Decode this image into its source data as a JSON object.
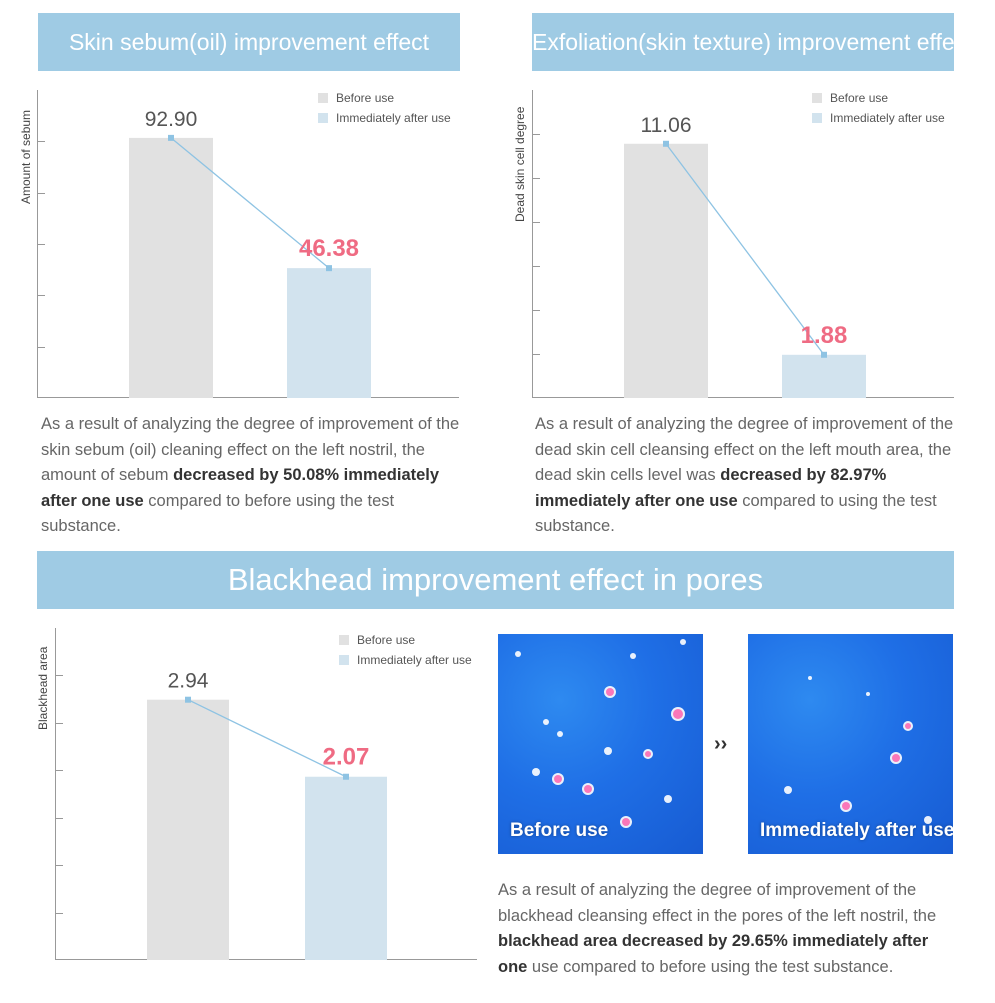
{
  "colors": {
    "banner": "#9fcbe4",
    "before_bar": "#e1e1e1",
    "after_bar": "#d2e3ee",
    "trend_line": "#8ec3e3",
    "after_value": "#ef6b83",
    "before_value": "#555555"
  },
  "legend": {
    "before": "Before use",
    "after": "Immediately after use"
  },
  "sebum": {
    "title": "Skin sebum(oil) improvement effect",
    "ylabel": "Amount of sebum",
    "description": [
      {
        "text": "As a result of analyzing the degree of improvement of the skin sebum (oil) cleaning effect on the left nostril, the amount of sebum ",
        "bold": false
      },
      {
        "text": "decreased by 50.08% immediately after one use",
        "bold": true
      },
      {
        "text": " compared to before using the test substance.",
        "bold": false
      }
    ]
  },
  "exfoliation": {
    "title": "Exfoliation(skin texture) improvement effect",
    "ylabel": "Dead skin cell degree",
    "description": [
      {
        "text": "As a result of analyzing the degree of improvement of the dead skin cell cleansing effect on the left mouth area, the dead skin cells level was ",
        "bold": false
      },
      {
        "text": "decreased by 82.97% immediately after one use",
        "bold": true
      },
      {
        "text": " compared to using the test substance.",
        "bold": false
      }
    ]
  },
  "blackhead": {
    "title": "Blackhead improvement effect in pores",
    "ylabel": "Blackhead area",
    "description": [
      {
        "text": "As a result of analyzing the degree of improvement of the blackhead cleansing effect in the pores of the left nostril, the ",
        "bold": false
      },
      {
        "text": "blackhead area decreased by 29.65% immediately after one",
        "bold": true
      },
      {
        "text": " use compared to before using the test substance.",
        "bold": false
      }
    ],
    "photo_before_caption": "Before use",
    "photo_after_caption": "Immediately after use",
    "arrow": "››"
  },
  "chart_data": [
    {
      "type": "bar",
      "title": "Skin sebum(oil) improvement effect",
      "ylabel": "Amount of sebum",
      "categories": [
        "Before use",
        "Immediately after use"
      ],
      "values": [
        92.9,
        46.38
      ],
      "value_labels": [
        "92.90",
        "46.38"
      ],
      "ylim": [
        0,
        110
      ],
      "legend": "top-right",
      "trend_line": true
    },
    {
      "type": "bar",
      "title": "Exfoliation(skin texture) improvement effect",
      "ylabel": "Dead skin cell degree",
      "categories": [
        "Before use",
        "Immediately after use"
      ],
      "values": [
        11.06,
        1.88
      ],
      "value_labels": [
        "11.06",
        "1.88"
      ],
      "ylim": [
        0,
        13.4
      ],
      "legend": "top-right",
      "trend_line": true
    },
    {
      "type": "bar",
      "title": "Blackhead improvement effect in pores",
      "ylabel": "Blackhead area",
      "categories": [
        "Before use",
        "Immediately after use"
      ],
      "values": [
        2.94,
        2.07
      ],
      "value_labels": [
        "2.94",
        "2.07"
      ],
      "ylim": [
        0,
        3.75
      ],
      "legend": "top-right",
      "trend_line": true
    }
  ]
}
